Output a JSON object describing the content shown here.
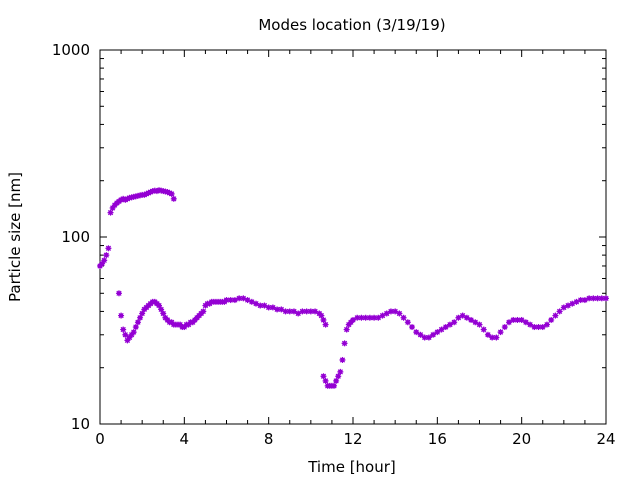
{
  "chart_data": {
    "type": "scatter",
    "title": "Modes location (3/19/19)",
    "xlabel": "Time [hour]",
    "ylabel": "Particle size [nm]",
    "xlim": [
      0,
      24
    ],
    "ylim": [
      10,
      1000
    ],
    "yscale": "log",
    "x_ticks": [
      0,
      4,
      8,
      12,
      16,
      20,
      24
    ],
    "y_ticks": [
      10,
      100,
      1000
    ],
    "x_tick_labels": [
      "0",
      "4",
      "8",
      "12",
      "16",
      "20",
      "24"
    ],
    "y_tick_labels": [
      "10",
      "100",
      "1000"
    ],
    "grid": false,
    "legend": "none",
    "marker_color": "#9400d3",
    "series": [
      {
        "x": [
          0.0,
          0.1,
          0.2,
          0.3,
          0.4,
          0.5,
          0.6,
          0.7,
          0.8,
          0.9,
          1.0,
          1.1,
          1.2,
          1.3,
          1.4,
          1.5,
          1.6,
          1.7,
          1.8,
          1.9,
          2.0,
          2.1,
          2.2,
          2.3,
          2.4,
          2.5,
          2.6,
          2.7,
          2.8,
          2.9,
          3.0,
          3.1,
          3.2,
          3.3,
          3.4,
          3.5
        ],
        "y": [
          70,
          72,
          75,
          80,
          87,
          135,
          143,
          148,
          152,
          155,
          158,
          160,
          158,
          160,
          162,
          163,
          164,
          165,
          166,
          167,
          168,
          168,
          170,
          172,
          174,
          176,
          177,
          176,
          178,
          177,
          176,
          175,
          174,
          172,
          170,
          160
        ]
      },
      {
        "x": [
          0.9,
          1.0,
          1.1,
          1.2,
          1.3,
          1.4,
          1.5,
          1.6,
          1.7,
          1.8,
          1.9,
          2.0,
          2.1,
          2.2,
          2.3,
          2.4,
          2.5,
          2.6,
          2.7,
          2.8,
          2.9,
          3.0,
          3.1,
          3.2,
          3.3,
          3.4,
          3.5,
          3.6,
          3.7,
          3.8,
          3.9,
          4.0,
          4.1,
          4.2,
          4.3,
          4.4,
          4.5,
          4.6,
          4.7,
          4.8,
          4.9,
          5.0,
          5.1,
          5.2,
          5.3,
          5.4,
          5.5,
          5.6,
          5.7,
          5.8,
          5.9,
          6.0,
          6.2,
          6.4,
          6.6,
          6.8,
          7.0,
          7.2,
          7.4,
          7.6,
          7.8,
          8.0,
          8.2,
          8.4,
          8.6,
          8.8,
          9.0,
          9.2,
          9.4,
          9.6,
          9.8,
          10.0,
          10.2,
          10.4,
          10.5,
          10.6,
          10.7
        ],
        "y": [
          50,
          38,
          32,
          30,
          28,
          29,
          30,
          31,
          33,
          35,
          37,
          39,
          41,
          42,
          43,
          44,
          45,
          45,
          44,
          43,
          41,
          39,
          37,
          36,
          35,
          35,
          34,
          34,
          34,
          34,
          33,
          33,
          34,
          34,
          35,
          35,
          36,
          37,
          38,
          39,
          40,
          43,
          44,
          44,
          45,
          45,
          45,
          45,
          45,
          45,
          45,
          46,
          46,
          46,
          47,
          47,
          46,
          45,
          44,
          43,
          43,
          42,
          42,
          41,
          41,
          40,
          40,
          40,
          39,
          40,
          40,
          40,
          40,
          39,
          38,
          36,
          34
        ]
      },
      {
        "x": [
          10.6,
          10.7,
          10.8,
          10.9,
          11.0,
          11.1,
          11.2,
          11.3,
          11.4,
          11.5,
          11.6,
          11.7,
          11.8,
          11.9,
          12.0,
          12.2,
          12.4,
          12.6,
          12.8,
          13.0,
          13.2,
          13.4,
          13.6,
          13.8,
          14.0,
          14.2,
          14.4,
          14.6,
          14.8,
          15.0,
          15.2,
          15.4,
          15.6,
          15.8,
          16.0,
          16.2,
          16.4,
          16.6,
          16.8,
          17.0,
          17.2,
          17.4,
          17.6,
          17.8,
          18.0,
          18.2,
          18.4,
          18.6,
          18.8,
          19.0,
          19.2,
          19.4,
          19.6,
          19.8,
          20.0,
          20.2,
          20.4,
          20.6,
          20.8,
          21.0,
          21.2,
          21.4,
          21.6,
          21.8,
          22.0,
          22.2,
          22.4,
          22.6,
          22.8,
          23.0,
          23.2,
          23.4,
          23.6,
          23.8,
          24.0
        ],
        "y": [
          18,
          17,
          16,
          16,
          16,
          16,
          17,
          18,
          19,
          22,
          27,
          32,
          34,
          35,
          36,
          37,
          37,
          37,
          37,
          37,
          37,
          38,
          39,
          40,
          40,
          39,
          37,
          35,
          33,
          31,
          30,
          29,
          29,
          30,
          31,
          32,
          33,
          34,
          35,
          37,
          38,
          37,
          36,
          35,
          34,
          32,
          30,
          29,
          29,
          31,
          33,
          35,
          36,
          36,
          36,
          35,
          34,
          33,
          33,
          33,
          34,
          36,
          38,
          40,
          42,
          43,
          44,
          45,
          46,
          46,
          47,
          47,
          47,
          47,
          47
        ]
      }
    ]
  }
}
